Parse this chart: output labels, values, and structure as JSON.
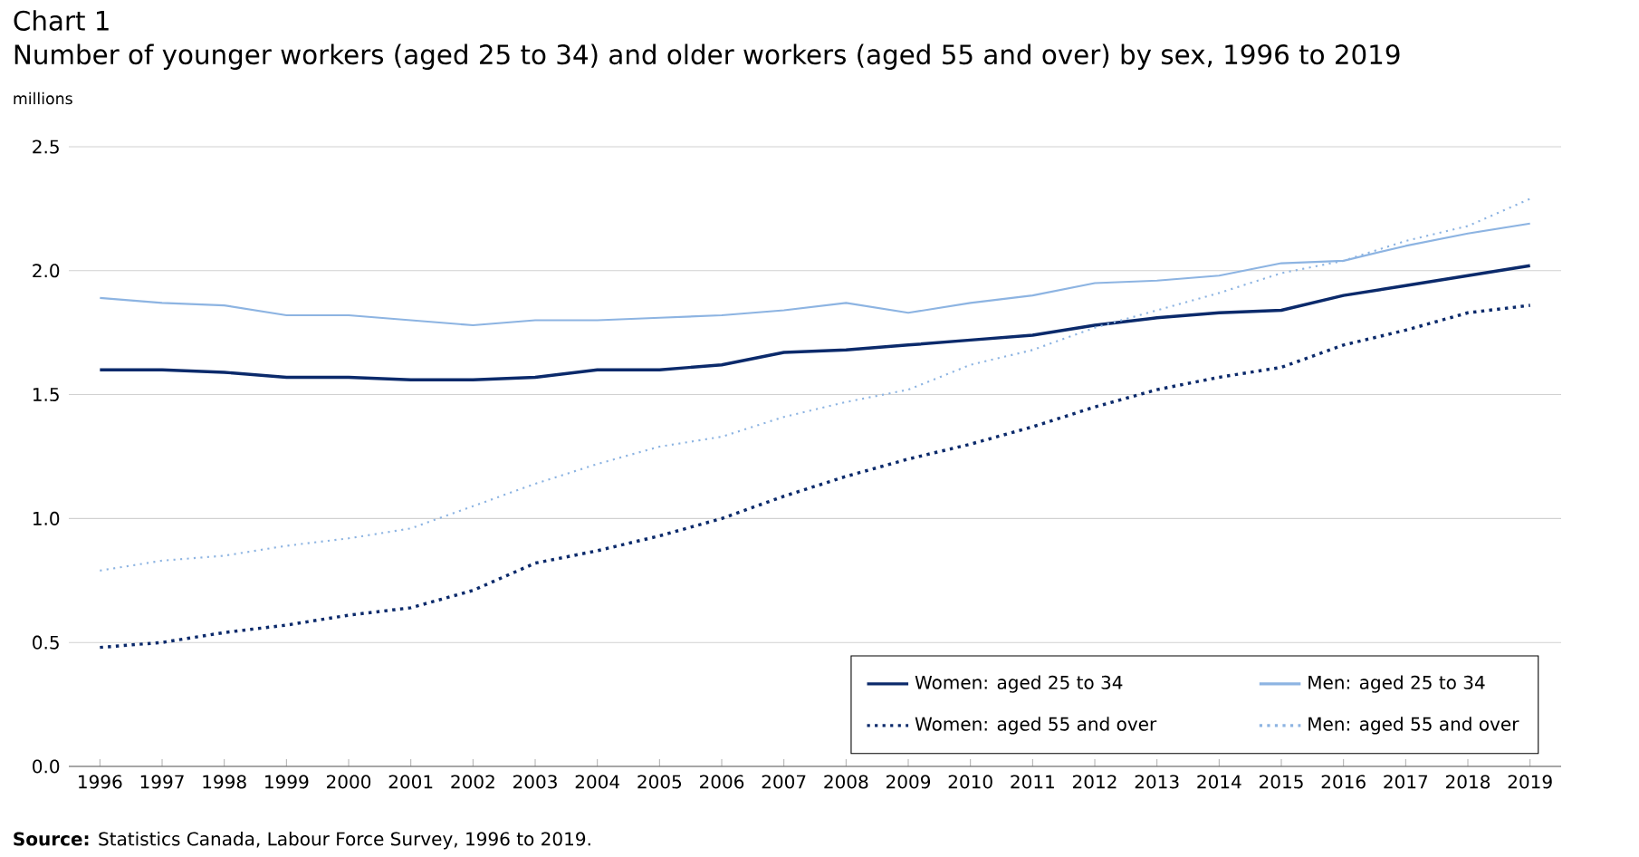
{
  "chart_data": {
    "type": "line",
    "title": "Chart 1",
    "subtitle": "Number of younger workers (aged 25 to 34) and older workers (aged 55 and over) by sex, 1996 to 2019",
    "ylabel": "millions",
    "annotations": [
      "**Source:** Statistics Canada, Labour Force Survey, 1996 to 2019."
    ],
    "categories": [
      "1996",
      "1997",
      "1998",
      "1999",
      "2000",
      "2001",
      "2002",
      "2003",
      "2004",
      "2005",
      "2006",
      "2007",
      "2008",
      "2009",
      "2010",
      "2011",
      "2012",
      "2013",
      "2014",
      "2015",
      "2016",
      "2017",
      "2018",
      "2019"
    ],
    "series": [
      {
        "name": "Women: aged 25 to 34",
        "color": "#0b2a6b",
        "line_style": "solid",
        "values": [
          1.6,
          1.6,
          1.59,
          1.57,
          1.57,
          1.56,
          1.56,
          1.57,
          1.6,
          1.6,
          1.62,
          1.67,
          1.68,
          1.7,
          1.72,
          1.74,
          1.78,
          1.81,
          1.83,
          1.84,
          1.9,
          1.94,
          1.98,
          2.02
        ]
      },
      {
        "name": "Men: aged 25 to 34",
        "color": "#8db4e2",
        "line_style": "solid",
        "values": [
          1.89,
          1.87,
          1.86,
          1.82,
          1.82,
          1.8,
          1.78,
          1.8,
          1.8,
          1.81,
          1.82,
          1.84,
          1.87,
          1.83,
          1.87,
          1.9,
          1.95,
          1.96,
          1.98,
          2.03,
          2.04,
          2.1,
          2.15,
          2.19
        ]
      },
      {
        "name": "Women: aged 55 and over",
        "color": "#0b2a6b",
        "line_style": "dotted",
        "values": [
          0.48,
          0.5,
          0.54,
          0.57,
          0.61,
          0.64,
          0.71,
          0.82,
          0.87,
          0.93,
          1.0,
          1.09,
          1.17,
          1.24,
          1.3,
          1.37,
          1.45,
          1.52,
          1.57,
          1.61,
          1.7,
          1.76,
          1.83,
          1.86
        ]
      },
      {
        "name": "Men: aged 55 and over",
        "color": "#8db4e2",
        "line_style": "dotted",
        "values": [
          0.79,
          0.83,
          0.85,
          0.89,
          0.92,
          0.96,
          1.05,
          1.14,
          1.22,
          1.29,
          1.33,
          1.41,
          1.47,
          1.52,
          1.62,
          1.68,
          1.77,
          1.84,
          1.91,
          1.99,
          2.04,
          2.12,
          2.18,
          2.29
        ]
      }
    ],
    "ylim": [
      0,
      2.5
    ],
    "yticks": [
      {
        "value": 0,
        "label": "0.0"
      },
      {
        "value": 0.5,
        "label": "0.5"
      },
      {
        "value": 1,
        "label": "1.0"
      },
      {
        "value": 1.5,
        "label": "1.5"
      },
      {
        "value": 2,
        "label": "2.0"
      },
      {
        "value": 2.5,
        "label": "2.5"
      }
    ],
    "grid": "y",
    "legend": "bottom right",
    "marker": "none"
  }
}
